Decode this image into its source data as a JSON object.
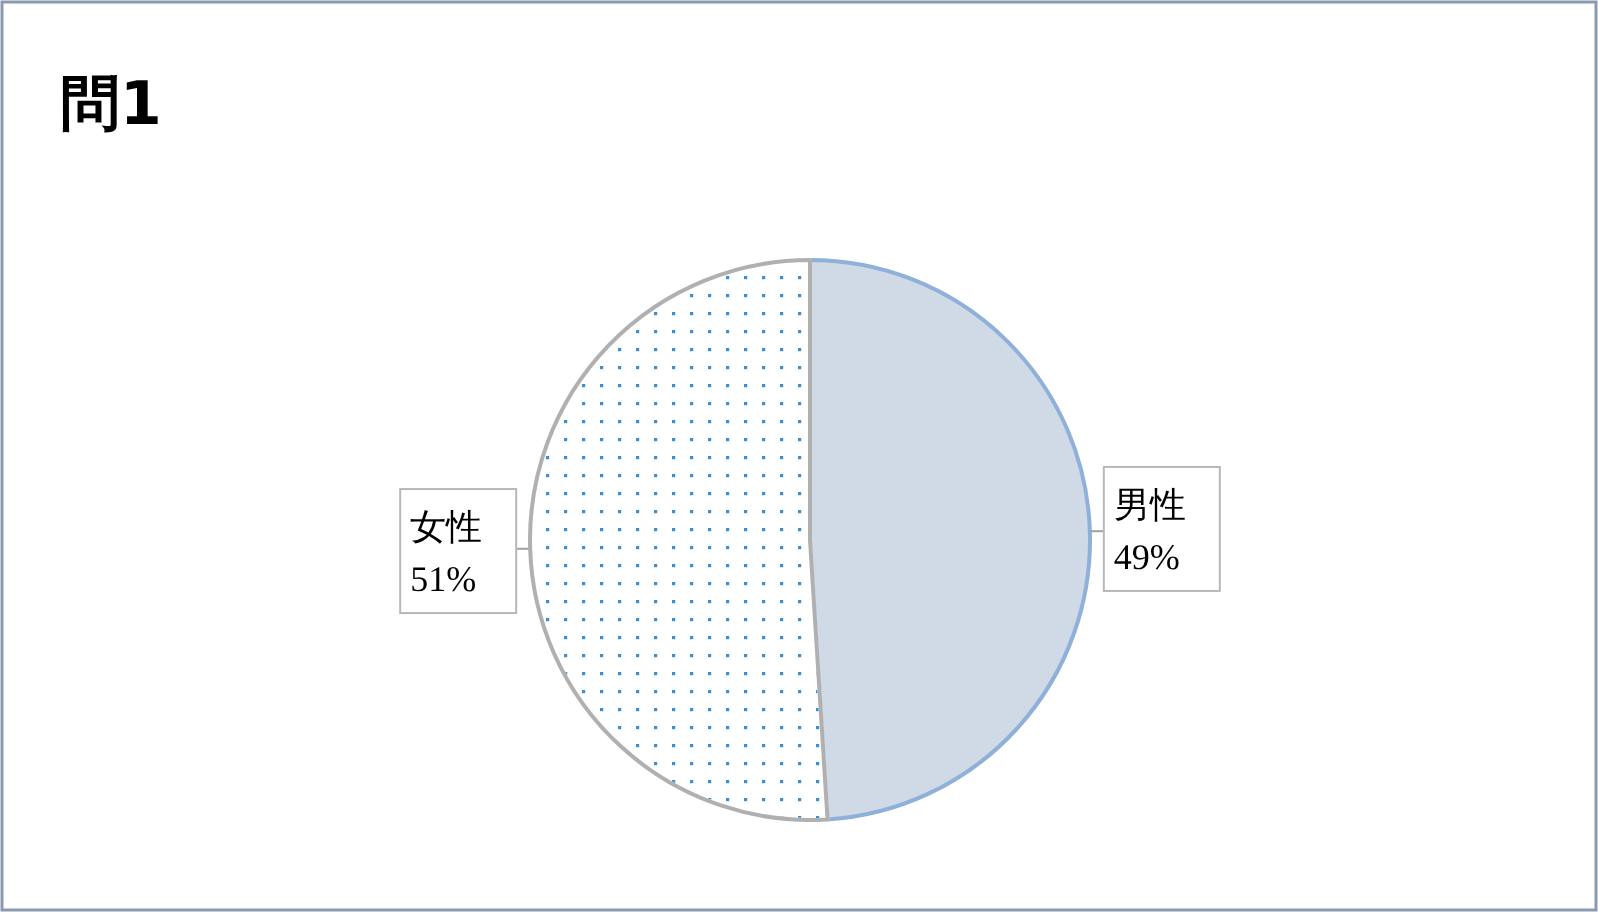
{
  "chart_data": {
    "type": "pie",
    "title": "問1",
    "categories": [
      "男性",
      "女性"
    ],
    "values": [
      49,
      51
    ],
    "colors": [
      "#d0d9e6",
      "#ffffff"
    ],
    "value_labels": [
      "49%",
      "51%"
    ],
    "legend": false
  }
}
